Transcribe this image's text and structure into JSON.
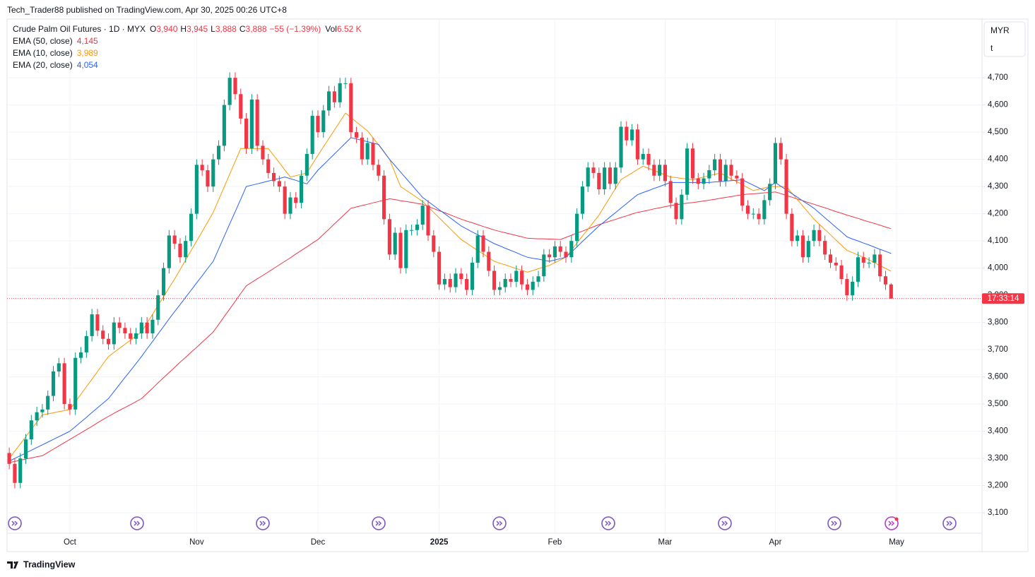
{
  "header": {
    "published": "Tech_Trader88 published on TradingView.com, Apr 30, 2025 00:26 UTC+8"
  },
  "footer": {
    "brand": "TradingView"
  },
  "currency_box": {
    "currency": "MYR",
    "unit": "t"
  },
  "legend": {
    "symbol": "Crude Palm Oil Futures · 1D · MYX",
    "fields": [
      {
        "key": "O",
        "value": "3,940"
      },
      {
        "key": "H",
        "value": "3,945"
      },
      {
        "key": "L",
        "value": "3,888"
      },
      {
        "key": "C",
        "value": "3,888"
      }
    ],
    "change": "−55 (−1.39%)",
    "volume_key": "Vol",
    "volume": "6.52 K"
  },
  "price_tag": {
    "countdown": "17:33:14"
  },
  "chart_data": {
    "type": "candlestick",
    "up_color": "#089981",
    "down_color": "#f23645",
    "grid": true,
    "xlim": [
      -0.4,
      176.5
    ],
    "ylim": [
      3025,
      4916
    ],
    "xticks": [
      {
        "value": 11,
        "label": "Oct"
      },
      {
        "value": 34,
        "label": "Nov"
      },
      {
        "value": 56,
        "label": "Dec"
      },
      {
        "value": 78,
        "label": "2025"
      },
      {
        "value": 99,
        "label": "Feb"
      },
      {
        "value": 119,
        "label": "Mar"
      },
      {
        "value": 139,
        "label": "Apr"
      },
      {
        "value": 161,
        "label": "May"
      }
    ],
    "yticks": [
      {
        "value": 3100,
        "label": "3,100"
      },
      {
        "value": 3200,
        "label": "3,200"
      },
      {
        "value": 3300,
        "label": "3,300"
      },
      {
        "value": 3400,
        "label": "3,400"
      },
      {
        "value": 3500,
        "label": "3,500"
      },
      {
        "value": 3600,
        "label": "3,600"
      },
      {
        "value": 3700,
        "label": "3,700"
      },
      {
        "value": 3800,
        "label": "3,800"
      },
      {
        "value": 3900,
        "label": "3,900"
      },
      {
        "value": 4000,
        "label": "4,000"
      },
      {
        "value": 4100,
        "label": "4,100"
      },
      {
        "value": 4200,
        "label": "4,200"
      },
      {
        "value": 4300,
        "label": "4,300"
      },
      {
        "value": 4400,
        "label": "4,400"
      },
      {
        "value": 4500,
        "label": "4,500"
      },
      {
        "value": 4600,
        "label": "4,600"
      },
      {
        "value": 4700,
        "label": "4,700"
      }
    ],
    "open": [
      3320,
      3280,
      3210,
      3300,
      3370,
      3440,
      3470,
      3480,
      3530,
      3620,
      3650,
      3500,
      3480,
      3670,
      3690,
      3750,
      3830,
      3770,
      3740,
      3720,
      3800,
      3780,
      3760,
      3740,
      3760,
      3800,
      3760,
      3810,
      3900,
      4000,
      4120,
      4090,
      4040,
      4100,
      4200,
      4380,
      4360,
      4300,
      4400,
      4450,
      4600,
      4700,
      4640,
      4550,
      4440,
      4620,
      4450,
      4400,
      4350,
      4320,
      4300,
      4200,
      4260,
      4240,
      4340,
      4420,
      4560,
      4500,
      4580,
      4650,
      4610,
      4680,
      4680,
      4500,
      4480,
      4400,
      4460,
      4380,
      4340,
      4180,
      4050,
      4130,
      4000,
      4140,
      4140,
      4160,
      4230,
      4120,
      4060,
      3940,
      3960,
      3930,
      3980,
      3960,
      3920,
      4020,
      4120,
      4060,
      3990,
      3920,
      3930,
      3960,
      3950,
      3990,
      3940,
      3920,
      3950,
      3970,
      4050,
      4040,
      4080,
      4060,
      4040,
      4100,
      4200,
      4300,
      4370,
      4350,
      4290,
      4370,
      4310,
      4370,
      4520,
      4470,
      4510,
      4400,
      4420,
      4380,
      4340,
      4380,
      4320,
      4240,
      4180,
      4270,
      4440,
      4330,
      4310,
      4330,
      4360,
      4400,
      4320,
      4380,
      4340,
      4330,
      4230,
      4200,
      4200,
      4180,
      4250,
      4310,
      4460,
      4400,
      4200,
      4100,
      4120,
      4040,
      4100,
      4140,
      4100,
      4050,
      4020,
      4010,
      3960,
      3900,
      3950,
      4040,
      4020,
      4020,
      4050,
      3970,
      3940
    ],
    "high": [
      3340,
      3300,
      3320,
      3390,
      3460,
      3490,
      3500,
      3550,
      3640,
      3670,
      3670,
      3520,
      3690,
      3710,
      3770,
      3850,
      3850,
      3790,
      3760,
      3820,
      3820,
      3800,
      3780,
      3780,
      3820,
      3820,
      3830,
      3920,
      4020,
      4140,
      4140,
      4110,
      4120,
      4220,
      4400,
      4400,
      4380,
      4420,
      4470,
      4620,
      4720,
      4720,
      4660,
      4570,
      4640,
      4640,
      4470,
      4420,
      4370,
      4340,
      4320,
      4280,
      4280,
      4360,
      4440,
      4580,
      4580,
      4600,
      4670,
      4670,
      4700,
      4700,
      4700,
      4520,
      4500,
      4480,
      4480,
      4400,
      4360,
      4200,
      4150,
      4150,
      4160,
      4160,
      4180,
      4250,
      4250,
      4140,
      4080,
      3980,
      3980,
      4000,
      4000,
      3980,
      4040,
      4140,
      4140,
      4080,
      4010,
      3950,
      3980,
      3980,
      4010,
      4010,
      3960,
      3970,
      3990,
      4070,
      4070,
      4100,
      4100,
      4080,
      4120,
      4220,
      4320,
      4390,
      4390,
      4370,
      4390,
      4390,
      4390,
      4540,
      4540,
      4530,
      4530,
      4440,
      4440,
      4400,
      4400,
      4400,
      4340,
      4260,
      4290,
      4460,
      4460,
      4350,
      4350,
      4380,
      4420,
      4420,
      4400,
      4400,
      4360,
      4350,
      4250,
      4220,
      4220,
      4270,
      4330,
      4480,
      4480,
      4420,
      4220,
      4140,
      4140,
      4120,
      4160,
      4160,
      4120,
      4070,
      4040,
      4030,
      3980,
      3970,
      4060,
      4060,
      4040,
      4070,
      4070,
      3990,
      3945
    ],
    "low": [
      3260,
      3190,
      3190,
      3280,
      3350,
      3420,
      3450,
      3460,
      3510,
      3600,
      3480,
      3460,
      3460,
      3650,
      3670,
      3730,
      3750,
      3720,
      3700,
      3700,
      3760,
      3740,
      3720,
      3720,
      3740,
      3740,
      3740,
      3790,
      3880,
      3980,
      4070,
      4020,
      4020,
      4080,
      4180,
      4340,
      4280,
      4280,
      4380,
      4430,
      4580,
      4620,
      4530,
      4420,
      4420,
      4430,
      4380,
      4330,
      4300,
      4280,
      4180,
      4180,
      4220,
      4220,
      4320,
      4400,
      4480,
      4480,
      4560,
      4590,
      4590,
      4660,
      4480,
      4460,
      4380,
      4380,
      4360,
      4320,
      4160,
      4030,
      4030,
      3980,
      3980,
      4120,
      4120,
      4140,
      4100,
      4040,
      3920,
      3920,
      3910,
      3910,
      3940,
      3900,
      3900,
      4000,
      4040,
      3970,
      3900,
      3900,
      3910,
      3930,
      3930,
      3920,
      3900,
      3900,
      3930,
      3950,
      4020,
      4020,
      4040,
      4020,
      4020,
      4080,
      4180,
      4280,
      4330,
      4270,
      4270,
      4290,
      4290,
      4350,
      4450,
      4450,
      4380,
      4380,
      4360,
      4320,
      4320,
      4300,
      4220,
      4160,
      4160,
      4250,
      4310,
      4290,
      4290,
      4310,
      4340,
      4300,
      4300,
      4320,
      4310,
      4210,
      4180,
      4180,
      4160,
      4160,
      4230,
      4290,
      4380,
      4180,
      4080,
      4080,
      4020,
      4020,
      4080,
      4080,
      4030,
      4000,
      3990,
      3940,
      3880,
      3880,
      3930,
      4000,
      4000,
      4000,
      3950,
      3920,
      3888
    ],
    "close": [
      3280,
      3210,
      3300,
      3370,
      3440,
      3470,
      3480,
      3530,
      3620,
      3650,
      3500,
      3480,
      3670,
      3690,
      3750,
      3830,
      3770,
      3740,
      3720,
      3800,
      3780,
      3760,
      3740,
      3760,
      3800,
      3760,
      3810,
      3900,
      4000,
      4120,
      4090,
      4040,
      4100,
      4200,
      4380,
      4360,
      4300,
      4400,
      4450,
      4600,
      4700,
      4640,
      4550,
      4440,
      4620,
      4450,
      4400,
      4350,
      4320,
      4300,
      4200,
      4260,
      4240,
      4340,
      4420,
      4560,
      4500,
      4580,
      4650,
      4610,
      4680,
      4680,
      4500,
      4480,
      4400,
      4460,
      4380,
      4340,
      4180,
      4050,
      4130,
      4000,
      4140,
      4140,
      4160,
      4230,
      4120,
      4060,
      3940,
      3960,
      3930,
      3980,
      3960,
      3920,
      4020,
      4120,
      4060,
      3990,
      3920,
      3930,
      3960,
      3950,
      3990,
      3940,
      3920,
      3950,
      3970,
      4050,
      4040,
      4080,
      4060,
      4040,
      4100,
      4200,
      4300,
      4370,
      4350,
      4290,
      4370,
      4310,
      4370,
      4520,
      4470,
      4510,
      4400,
      4420,
      4380,
      4340,
      4380,
      4320,
      4240,
      4180,
      4270,
      4440,
      4330,
      4310,
      4330,
      4360,
      4400,
      4320,
      4380,
      4340,
      4330,
      4230,
      4200,
      4200,
      4180,
      4250,
      4310,
      4460,
      4400,
      4200,
      4100,
      4120,
      4040,
      4100,
      4140,
      4100,
      4050,
      4020,
      4010,
      3960,
      3900,
      3950,
      4040,
      4020,
      4020,
      4050,
      3970,
      3940,
      3888
    ],
    "series": [
      {
        "name": "EMA (50, close)",
        "color": "#f23645",
        "last_label": "4,145",
        "values": [
          3285,
          3289,
          3293,
          3298,
          3302,
          3306,
          3310,
          3322,
          3334,
          3346,
          3358,
          3370,
          3382,
          3394,
          3406,
          3418,
          3431,
          3443,
          3455,
          3466,
          3477,
          3487,
          3498,
          3509,
          3520,
          3539,
          3558,
          3578,
          3597,
          3616,
          3635,
          3654,
          3672,
          3691,
          3709,
          3728,
          3746,
          3765,
          3793,
          3822,
          3850,
          3878,
          3907,
          3935,
          3948,
          3961,
          3973,
          3986,
          3999,
          4012,
          4025,
          4038,
          4052,
          4065,
          4078,
          4092,
          4105,
          4124,
          4143,
          4163,
          4182,
          4201,
          4220,
          4225,
          4230,
          4235,
          4240,
          4245,
          4250,
          4255,
          4252,
          4248,
          4245,
          4242,
          4238,
          4235,
          4227,
          4219,
          4211,
          4204,
          4196,
          4188,
          4180,
          4173,
          4167,
          4160,
          4153,
          4147,
          4140,
          4135,
          4130,
          4125,
          4120,
          4115,
          4110,
          4109,
          4108,
          4108,
          4107,
          4106,
          4105,
          4113,
          4121,
          4129,
          4136,
          4144,
          4152,
          4160,
          4166,
          4173,
          4179,
          4186,
          4192,
          4199,
          4205,
          4209,
          4213,
          4218,
          4222,
          4226,
          4230,
          4233,
          4236,
          4239,
          4241,
          4244,
          4247,
          4250,
          4253,
          4257,
          4260,
          4263,
          4267,
          4270,
          4272,
          4273,
          4275,
          4277,
          4278,
          4280,
          4274,
          4267,
          4261,
          4254,
          4248,
          4241,
          4235,
          4228,
          4222,
          4215,
          4208,
          4202,
          4195,
          4189,
          4183,
          4176,
          4170,
          4164,
          4158,
          4151,
          4145
        ]
      },
      {
        "name": "EMA (10, close)",
        "color": "#ff9800",
        "last_label": "3,989",
        "values": [
          3300,
          3327,
          3353,
          3380,
          3407,
          3433,
          3460,
          3464,
          3468,
          3472,
          3476,
          3480,
          3508,
          3536,
          3564,
          3591,
          3619,
          3647,
          3675,
          3690,
          3705,
          3720,
          3735,
          3750,
          3765,
          3798,
          3830,
          3863,
          3895,
          3928,
          3960,
          3995,
          4030,
          4065,
          4100,
          4135,
          4170,
          4205,
          4252,
          4299,
          4346,
          4393,
          4440,
          4440,
          4440,
          4440,
          4440,
          4440,
          4414,
          4388,
          4361,
          4335,
          4340,
          4345,
          4350,
          4383,
          4415,
          4446,
          4477,
          4508,
          4539,
          4570,
          4554,
          4537,
          4521,
          4505,
          4479,
          4453,
          4426,
          4400,
          4350,
          4300,
          4286,
          4273,
          4259,
          4245,
          4225,
          4205,
          4185,
          4165,
          4145,
          4125,
          4105,
          4092,
          4078,
          4065,
          4052,
          4038,
          4025,
          4018,
          4012,
          4005,
          3998,
          3992,
          3985,
          3991,
          3998,
          4004,
          4010,
          4020,
          4030,
          4040,
          4066,
          4092,
          4118,
          4143,
          4169,
          4195,
          4228,
          4260,
          4293,
          4325,
          4338,
          4350,
          4363,
          4375,
          4367,
          4359,
          4351,
          4343,
          4335,
          4333,
          4330,
          4328,
          4325,
          4330,
          4335,
          4340,
          4345,
          4350,
          4339,
          4328,
          4318,
          4307,
          4296,
          4285,
          4290,
          4295,
          4300,
          4300,
          4300,
          4300,
          4276,
          4252,
          4228,
          4204,
          4180,
          4161,
          4142,
          4123,
          4103,
          4084,
          4065,
          4057,
          4048,
          4040,
          4030,
          4020,
          4009,
          3999,
          3989
        ]
      },
      {
        "name": "EMA (20, close)",
        "color": "#2962ff",
        "last_label": "4,054",
        "values": [
          3290,
          3300,
          3310,
          3320,
          3330,
          3340,
          3350,
          3360,
          3370,
          3380,
          3390,
          3400,
          3417,
          3434,
          3451,
          3469,
          3486,
          3503,
          3520,
          3546,
          3572,
          3598,
          3623,
          3649,
          3675,
          3703,
          3730,
          3758,
          3785,
          3813,
          3840,
          3866,
          3893,
          3919,
          3946,
          3972,
          3999,
          4025,
          4071,
          4117,
          4163,
          4208,
          4254,
          4300,
          4305,
          4310,
          4315,
          4320,
          4325,
          4330,
          4335,
          4329,
          4323,
          4316,
          4310,
          4335,
          4360,
          4380,
          4400,
          4420,
          4440,
          4460,
          4480,
          4475,
          4470,
          4465,
          4460,
          4455,
          4428,
          4400,
          4377,
          4353,
          4330,
          4307,
          4283,
          4260,
          4245,
          4230,
          4215,
          4200,
          4185,
          4170,
          4155,
          4144,
          4133,
          4123,
          4112,
          4101,
          4090,
          4082,
          4073,
          4065,
          4057,
          4048,
          4040,
          4036,
          4033,
          4029,
          4025,
          4030,
          4035,
          4040,
          4059,
          4078,
          4098,
          4117,
          4136,
          4155,
          4171,
          4188,
          4204,
          4221,
          4237,
          4254,
          4270,
          4278,
          4285,
          4293,
          4300,
          4308,
          4315,
          4315,
          4315,
          4315,
          4315,
          4315,
          4315,
          4315,
          4317,
          4318,
          4320,
          4322,
          4323,
          4325,
          4315,
          4305,
          4295,
          4285,
          4300,
          4315,
          4301,
          4288,
          4274,
          4261,
          4247,
          4234,
          4220,
          4203,
          4185,
          4168,
          4150,
          4133,
          4115,
          4107,
          4100,
          4092,
          4085,
          4077,
          4069,
          4062,
          4054
        ]
      }
    ]
  }
}
